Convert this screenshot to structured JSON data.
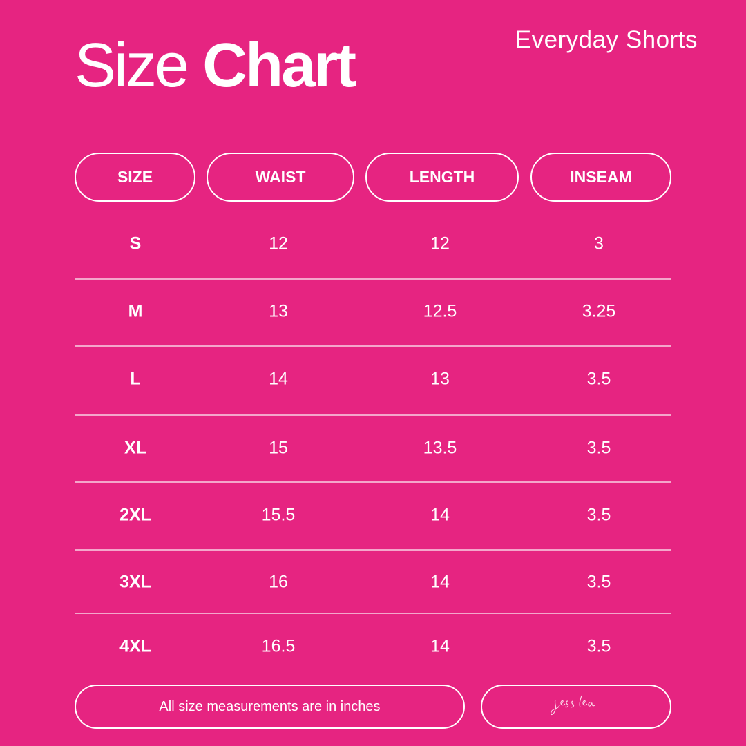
{
  "title": {
    "light": "Size",
    "bold": "Chart"
  },
  "subtitle": "Everyday Shorts",
  "colors": {
    "background": "#e62481",
    "text": "#ffffff"
  },
  "table": {
    "headers": [
      "SIZE",
      "WAIST",
      "LENGTH",
      "INSEAM"
    ],
    "rows": [
      [
        "S",
        "12",
        "12",
        "3"
      ],
      [
        "M",
        "13",
        "12.5",
        "3.25"
      ],
      [
        "L",
        "14",
        "13",
        "3.5"
      ],
      [
        "XL",
        "15",
        "13.5",
        "3.5"
      ],
      [
        "2XL",
        "15.5",
        "14",
        "3.5"
      ],
      [
        "3XL",
        "16",
        "14",
        "3.5"
      ],
      [
        "4XL",
        "16.5",
        "14",
        "3.5"
      ]
    ]
  },
  "footer": {
    "note": "All size measurements are in inches",
    "signature": "jess lea"
  }
}
